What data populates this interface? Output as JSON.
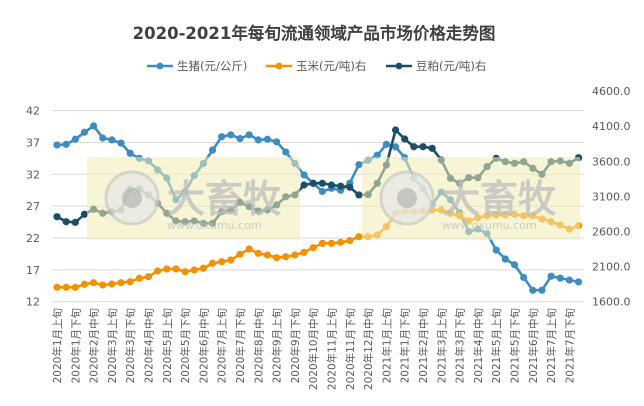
{
  "chart_data": {
    "type": "line",
    "title": "2020-2021年每旬流通领域产品市场价格走势图",
    "x_tick_labels": [
      "2020年1月上旬",
      "2020年1月下旬",
      "2020年2月中旬",
      "2020年3月上旬",
      "2020年3月下旬",
      "2020年4月中旬",
      "2020年5月上旬",
      "2020年5月下旬",
      "2020年6月中旬",
      "2020年7月上旬",
      "2020年7月下旬",
      "2020年8月中旬",
      "2020年9月上旬",
      "2020年9月下旬",
      "2020年10月中旬",
      "2020年11月上旬",
      "2020年11月下旬",
      "2020年12月中旬",
      "2021年1月上旬",
      "2021年1月下旬",
      "2021年2月中旬",
      "2021年3月上旬",
      "2021年3月下旬",
      "2021年4月中旬",
      "2021年5月上旬",
      "2021年5月下旬",
      "2021年6月中旬",
      "2021年7月上旬",
      "2021年7月下旬"
    ],
    "y_left": {
      "ticks": [
        "12",
        "17",
        "22",
        "27",
        "32",
        "37",
        "42"
      ],
      "range": [
        12,
        45
      ]
    },
    "y_right": {
      "ticks": [
        "1600.0",
        "2100.0",
        "2600.0",
        "3100.0",
        "3600.0",
        "4100.0",
        "4600.0"
      ],
      "range": [
        1600,
        4600
      ]
    },
    "grid": true,
    "legend_position": "top",
    "series": [
      {
        "name": "生猪(元/公斤)",
        "axis": "left",
        "color": "#3d8dbf",
        "values": [
          36.6,
          36.7,
          37.5,
          38.6,
          39.6,
          37.7,
          37.4,
          36.9,
          35.3,
          34.5,
          34.1,
          32.7,
          31.4,
          28.0,
          29.3,
          31.8,
          33.7,
          35.8,
          37.9,
          38.2,
          37.6,
          38.2,
          37.4,
          37.5,
          37.1,
          35.5,
          33.7,
          31.9,
          30.6,
          29.3,
          29.8,
          29.5,
          30.6,
          33.5,
          34.2,
          35.0,
          36.7,
          36.3,
          34.6,
          31.4,
          29.8,
          27.3,
          29.2,
          28.0,
          26.0,
          23.0,
          23.4,
          22.7,
          20.1,
          18.7,
          17.8,
          15.8,
          13.8,
          13.8,
          16.0,
          15.7,
          15.4,
          15.1
        ]
      },
      {
        "name": "玉米(元/吨)右",
        "axis": "right",
        "color": "#f39200",
        "values": [
          1805,
          1805,
          1805,
          1848,
          1871,
          1838,
          1852,
          1871,
          1885,
          1933,
          1956,
          2037,
          2066,
          2066,
          2027,
          2051,
          2076,
          2147,
          2170,
          2194,
          2275,
          2350,
          2289,
          2265,
          2227,
          2241,
          2265,
          2303,
          2369,
          2431,
          2431,
          2446,
          2470,
          2526,
          2526,
          2550,
          2668,
          2859,
          2882,
          2882,
          2892,
          2906,
          2906,
          2859,
          2825,
          2749,
          2796,
          2825,
          2835,
          2835,
          2845,
          2825,
          2825,
          2778,
          2739,
          2692,
          2635,
          2682
        ]
      },
      {
        "name": "豆粕(元/吨)右",
        "axis": "right",
        "color": "#1e4d68",
        "values": [
          2810,
          2739,
          2730,
          2845,
          2916,
          2859,
          2882,
          2906,
          3205,
          3205,
          3120,
          3001,
          2859,
          2749,
          2739,
          2749,
          2716,
          2716,
          2882,
          2906,
          3015,
          2953,
          2892,
          2906,
          2977,
          3095,
          3120,
          3262,
          3286,
          3286,
          3262,
          3245,
          3230,
          3120,
          3125,
          3286,
          3547,
          4045,
          3917,
          3807,
          3807,
          3784,
          3618,
          3357,
          3286,
          3366,
          3366,
          3523,
          3642,
          3594,
          3571,
          3594,
          3500,
          3414,
          3594,
          3604,
          3571,
          3651
        ]
      }
    ]
  },
  "watermark": {
    "brand": "大畜牧",
    "url": "www.dxumu.com",
    "fill": "#f3ecb4"
  }
}
